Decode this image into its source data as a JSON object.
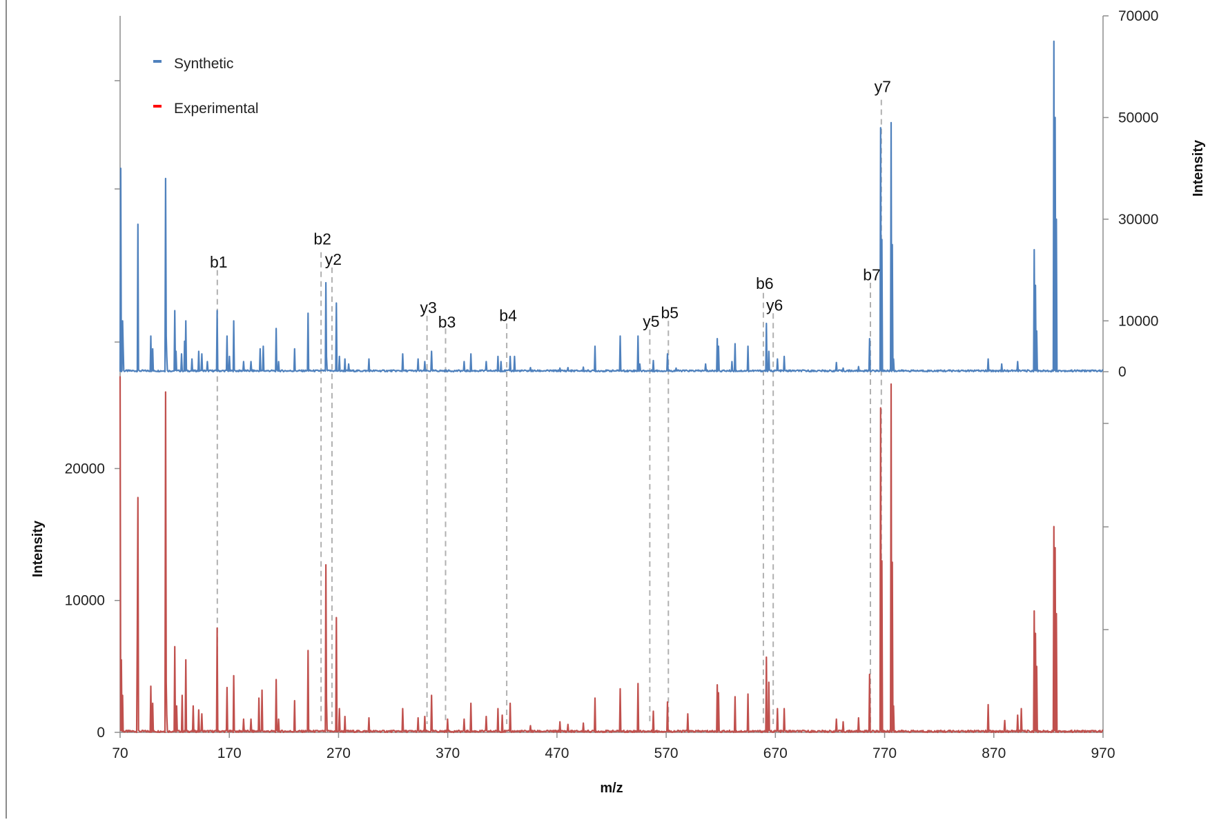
{
  "chart_data": {
    "type": "line",
    "xlabel": "m/z",
    "ylabel_left": "Intensity",
    "ylabel_right": "Intensity",
    "xlim": [
      70,
      970
    ],
    "x_ticks": [
      70,
      170,
      270,
      370,
      470,
      570,
      670,
      770,
      870,
      970
    ],
    "y_left_lim": [
      0,
      27500
    ],
    "y_left_ticks": [
      0,
      10000,
      20000
    ],
    "y_right_ticks": [
      0,
      10000,
      30000,
      50000,
      70000
    ],
    "legend": {
      "placement": "top-left",
      "entries": [
        {
          "label": "Synthetic",
          "color": "#4f81bd"
        },
        {
          "label": "Experimental",
          "color": "#ff0000"
        }
      ]
    },
    "series": [
      {
        "name": "Synthetic",
        "color": "#4f81bd",
        "axis": "right",
        "ylim": [
          0,
          70000
        ],
        "peaks": [
          [
            70.5,
            40000
          ],
          [
            72,
            10000
          ],
          [
            73,
            5000
          ],
          [
            86.5,
            29000
          ],
          [
            86.2,
            16000
          ],
          [
            98,
            7000
          ],
          [
            100,
            4500
          ],
          [
            111.5,
            38000
          ],
          [
            112,
            7000
          ],
          [
            113,
            3000
          ],
          [
            120,
            12000
          ],
          [
            121,
            4000
          ],
          [
            126,
            3500
          ],
          [
            129,
            6000
          ],
          [
            130,
            10000
          ],
          [
            136,
            2500
          ],
          [
            142,
            4000
          ],
          [
            145,
            3500
          ],
          [
            150,
            2000
          ],
          [
            159,
            12000
          ],
          [
            168,
            7000
          ],
          [
            170,
            3000
          ],
          [
            174,
            10000
          ],
          [
            183,
            2000
          ],
          [
            190,
            2000
          ],
          [
            198,
            4500
          ],
          [
            201,
            5000
          ],
          [
            213,
            8500
          ],
          [
            215,
            2000
          ],
          [
            230,
            4500
          ],
          [
            242,
            11500
          ],
          [
            258.5,
            17500
          ],
          [
            259,
            3000
          ],
          [
            268,
            13500
          ],
          [
            271,
            3000
          ],
          [
            276,
            2500
          ],
          [
            279,
            1500
          ],
          [
            298,
            2500
          ],
          [
            329,
            3500
          ],
          [
            343,
            2500
          ],
          [
            349,
            2000
          ],
          [
            355,
            4000
          ],
          [
            385,
            2000
          ],
          [
            391,
            3500
          ],
          [
            405,
            2000
          ],
          [
            416,
            3000
          ],
          [
            419,
            2000
          ],
          [
            427,
            3000
          ],
          [
            431,
            3000
          ],
          [
            446,
            800
          ],
          [
            473,
            700
          ],
          [
            480,
            800
          ],
          [
            494,
            900
          ],
          [
            505,
            5000
          ],
          [
            528,
            7000
          ],
          [
            544,
            7000
          ],
          [
            546,
            1500
          ],
          [
            558,
            2200
          ],
          [
            571,
            3500
          ],
          [
            579,
            700
          ],
          [
            606,
            1500
          ],
          [
            617,
            6500
          ],
          [
            618,
            5000
          ],
          [
            630,
            2000
          ],
          [
            633,
            5500
          ],
          [
            645,
            5000
          ],
          [
            662,
            9500
          ],
          [
            664,
            4000
          ],
          [
            672,
            2500
          ],
          [
            678,
            3000
          ],
          [
            726,
            1800
          ],
          [
            732,
            700
          ],
          [
            746,
            1000
          ],
          [
            756,
            6500
          ],
          [
            766.5,
            48000
          ],
          [
            767.5,
            26000
          ],
          [
            776,
            49000
          ],
          [
            777,
            25000
          ],
          [
            778,
            2500
          ],
          [
            865,
            2500
          ],
          [
            877,
            1500
          ],
          [
            892,
            2000
          ],
          [
            907,
            24000
          ],
          [
            908,
            17000
          ],
          [
            909,
            8000
          ],
          [
            925,
            65000
          ],
          [
            926,
            50000
          ],
          [
            927,
            30000
          ]
        ]
      },
      {
        "name": "Experimental",
        "color": "#c0504d",
        "axis": "left",
        "peaks": [
          [
            70,
            27000
          ],
          [
            71,
            5500
          ],
          [
            72,
            2800
          ],
          [
            86.5,
            17800
          ],
          [
            86,
            7500
          ],
          [
            98,
            3500
          ],
          [
            100,
            2200
          ],
          [
            111.5,
            25800
          ],
          [
            112,
            3800
          ],
          [
            113,
            1300
          ],
          [
            120,
            6500
          ],
          [
            122,
            2000
          ],
          [
            127,
            2800
          ],
          [
            130,
            5500
          ],
          [
            137,
            2000
          ],
          [
            142,
            1700
          ],
          [
            145,
            1400
          ],
          [
            159,
            7900
          ],
          [
            168,
            3400
          ],
          [
            174,
            4300
          ],
          [
            183,
            1000
          ],
          [
            190,
            1000
          ],
          [
            197,
            2600
          ],
          [
            200,
            3200
          ],
          [
            213,
            4000
          ],
          [
            215,
            1000
          ],
          [
            230,
            2400
          ],
          [
            242,
            6200
          ],
          [
            258.5,
            12700
          ],
          [
            259,
            2500
          ],
          [
            268,
            8700
          ],
          [
            271,
            1800
          ],
          [
            276,
            1200
          ],
          [
            298,
            1100
          ],
          [
            329,
            1800
          ],
          [
            343,
            1100
          ],
          [
            349,
            1200
          ],
          [
            355,
            2800
          ],
          [
            370,
            1000
          ],
          [
            385,
            1000
          ],
          [
            391,
            2200
          ],
          [
            405,
            1200
          ],
          [
            416,
            1800
          ],
          [
            420,
            1300
          ],
          [
            427,
            2200
          ],
          [
            446,
            500
          ],
          [
            473,
            800
          ],
          [
            480,
            600
          ],
          [
            494,
            700
          ],
          [
            505,
            2600
          ],
          [
            528,
            3300
          ],
          [
            544,
            3700
          ],
          [
            558,
            1600
          ],
          [
            571,
            2300
          ],
          [
            590,
            1400
          ],
          [
            617,
            3600
          ],
          [
            618,
            3000
          ],
          [
            633,
            2700
          ],
          [
            645,
            2900
          ],
          [
            662,
            5700
          ],
          [
            664,
            3800
          ],
          [
            672,
            1800
          ],
          [
            678,
            1800
          ],
          [
            726,
            1000
          ],
          [
            732,
            800
          ],
          [
            746,
            1100
          ],
          [
            756,
            4400
          ],
          [
            766.5,
            24600
          ],
          [
            767.5,
            13000
          ],
          [
            776,
            26400
          ],
          [
            777,
            12900
          ],
          [
            778,
            2000
          ],
          [
            865,
            2100
          ],
          [
            880,
            900
          ],
          [
            892,
            1300
          ],
          [
            895,
            1800
          ],
          [
            907,
            9200
          ],
          [
            908,
            7500
          ],
          [
            909,
            5000
          ],
          [
            925,
            15600
          ],
          [
            926,
            14000
          ],
          [
            927,
            9000
          ]
        ]
      }
    ],
    "annotations": [
      {
        "label": "b1",
        "x": 159,
        "stem_right": 20000,
        "text_right": 20500
      },
      {
        "label": "b2",
        "x": 254,
        "stem_right": 23500,
        "text_right": 25000
      },
      {
        "label": "y2",
        "x": 264,
        "stem_right": 20500,
        "text_right": 21000
      },
      {
        "label": "y3",
        "x": 351,
        "stem_right": 11000,
        "text_right": 11500
      },
      {
        "label": "b3",
        "x": 368,
        "stem_right": 8500,
        "text_right": 8700
      },
      {
        "label": "b4",
        "x": 424,
        "stem_right": 9500,
        "text_right": 10000
      },
      {
        "label": "y5",
        "x": 555,
        "stem_right": 8300,
        "text_right": 8800
      },
      {
        "label": "b5",
        "x": 572,
        "stem_right": 10000,
        "text_right": 10500
      },
      {
        "label": "b6",
        "x": 659,
        "stem_right": 15500,
        "text_right": 16300
      },
      {
        "label": "y6",
        "x": 668,
        "stem_right": 11500,
        "text_right": 12000
      },
      {
        "label": "b7",
        "x": 757,
        "stem_right": 17500,
        "text_right": 18000
      },
      {
        "label": "y7",
        "x": 767,
        "stem_right": 53500,
        "text_right": 55000
      }
    ]
  }
}
